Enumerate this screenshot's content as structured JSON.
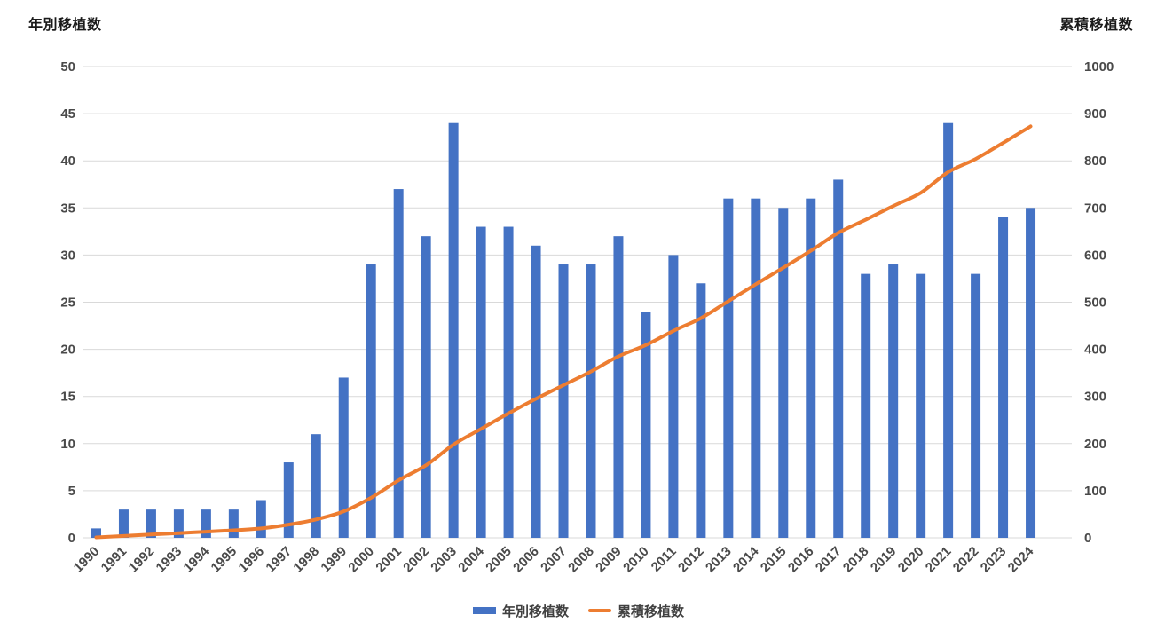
{
  "chart_data": {
    "type": "bar",
    "subtype": "combo-bar-line-dual-axis",
    "title_left_axis": "年別移植数",
    "title_right_axis": "累積移植数",
    "categories": [
      "1990",
      "1991",
      "1992",
      "1993",
      "1994",
      "1995",
      "1996",
      "1997",
      "1998",
      "1999",
      "2000",
      "2001",
      "2002",
      "2003",
      "2004",
      "2005",
      "2006",
      "2007",
      "2008",
      "2009",
      "2010",
      "2011",
      "2012",
      "2013",
      "2014",
      "2015",
      "2016",
      "2017",
      "2018",
      "2019",
      "2020",
      "2021",
      "2022",
      "2023",
      "2024"
    ],
    "series": [
      {
        "name": "年別移植数",
        "type": "bar",
        "axis": "left",
        "color": "#4472C4",
        "values": [
          1,
          3,
          3,
          3,
          3,
          3,
          4,
          8,
          11,
          17,
          29,
          37,
          32,
          44,
          33,
          33,
          31,
          29,
          29,
          32,
          24,
          30,
          27,
          36,
          36,
          35,
          36,
          38,
          28,
          29,
          28,
          44,
          28,
          34,
          35
        ]
      },
      {
        "name": "累積移植数",
        "type": "line",
        "axis": "right",
        "color": "#ED7D31",
        "values": [
          1,
          4,
          7,
          10,
          13,
          16,
          20,
          28,
          39,
          56,
          85,
          122,
          154,
          198,
          231,
          264,
          295,
          324,
          353,
          385,
          409,
          439,
          466,
          502,
          538,
          573,
          609,
          647,
          675,
          704,
          732,
          776,
          804,
          838,
          873
        ]
      }
    ],
    "left_axis": {
      "min": 0,
      "max": 50,
      "step": 5,
      "tick_labels": [
        "0",
        "5",
        "10",
        "15",
        "20",
        "25",
        "30",
        "35",
        "40",
        "45",
        "50"
      ]
    },
    "right_axis": {
      "min": 0,
      "max": 1000,
      "step": 100,
      "tick_labels": [
        "0",
        "100",
        "200",
        "300",
        "400",
        "500",
        "600",
        "700",
        "800",
        "900",
        "1000"
      ]
    },
    "grid": true,
    "grid_color": "#D9D9D9",
    "tick_text_color": "#4a4a4a",
    "legend_position": "bottom"
  }
}
